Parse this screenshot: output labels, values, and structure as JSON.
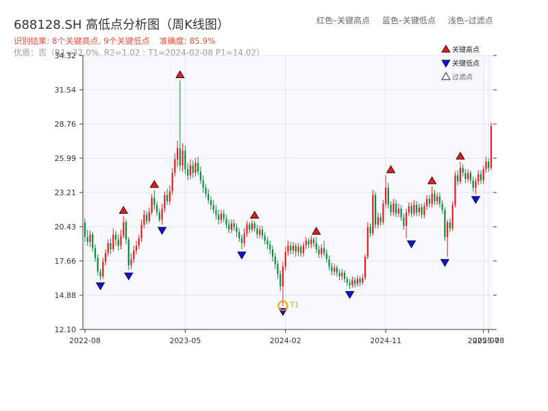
{
  "header": {
    "title": "688128.SH 高低点分析图（周K线图）",
    "legend_top": [
      "红色–关键高点",
      "蓝色–关键低点",
      "浅色–过滤点"
    ],
    "result_line": [
      "识别结果: 8个关键高点, 9个关键低点",
      "准确度: 85.9%"
    ],
    "detail_line": "优质：否（R1=32.0%, R2=1.02 ; T1=2024-02-08 P1=14.02）"
  },
  "colors": {
    "up": "#e41a1c",
    "down": "#0a8a3a",
    "high_marker": "#e41a1c",
    "low_marker": "#1010d8",
    "t1_ring": "#f39c12",
    "plot_bg": "#f6f8fb",
    "grid": "#e1e4ea",
    "axis": "#333333"
  },
  "chart_data": {
    "type": "candlestick",
    "yticks": [
      "12.10",
      "14.88",
      "17.66",
      "20.43",
      "23.21",
      "25.99",
      "28.76",
      "31.54",
      "34.32"
    ],
    "ylim": [
      12.1,
      34.32
    ],
    "xticks": [
      {
        "label": "2022-08",
        "i": 0
      },
      {
        "label": "2023-05",
        "i": 39
      },
      {
        "label": "2024-02",
        "i": 78
      },
      {
        "label": "2024-11",
        "i": 117
      },
      {
        "label": "2025-07",
        "i": 155
      },
      {
        "label": "2025-08",
        "i": 157
      }
    ],
    "legend": [
      {
        "label": "关键高点",
        "kind": "high"
      },
      {
        "label": "关键低点",
        "kind": "low"
      },
      {
        "label": "过滤点",
        "kind": "filtered"
      }
    ],
    "high_points": [
      {
        "i": 15,
        "value": 21.3
      },
      {
        "i": 27,
        "value": 23.4
      },
      {
        "i": 37,
        "value": 32.3
      },
      {
        "i": 66,
        "value": 20.9
      },
      {
        "i": 90,
        "value": 19.6
      },
      {
        "i": 119,
        "value": 24.6
      },
      {
        "i": 135,
        "value": 23.7
      },
      {
        "i": 146,
        "value": 25.7
      }
    ],
    "low_points": [
      {
        "i": 6,
        "value": 16.1
      },
      {
        "i": 17,
        "value": 16.9
      },
      {
        "i": 30,
        "value": 20.6
      },
      {
        "i": 61,
        "value": 18.6
      },
      {
        "i": 77,
        "value": 14.02
      },
      {
        "i": 103,
        "value": 15.4
      },
      {
        "i": 127,
        "value": 19.5
      },
      {
        "i": 140,
        "value": 18.0
      },
      {
        "i": 152,
        "value": 23.1
      }
    ],
    "t1": {
      "i": 77,
      "value": 14.02,
      "label": "T1"
    },
    "candles": [
      [
        20.8,
        19.6,
        21.1,
        19.2
      ],
      [
        19.6,
        19.2,
        20.2,
        18.9
      ],
      [
        19.2,
        19.8,
        20.1,
        18.8
      ],
      [
        19.8,
        18.7,
        20.0,
        18.4
      ],
      [
        18.7,
        17.9,
        19.0,
        17.6
      ],
      [
        17.9,
        16.8,
        18.2,
        16.5
      ],
      [
        16.8,
        16.4,
        17.0,
        16.1
      ],
      [
        16.4,
        17.6,
        17.9,
        16.2
      ],
      [
        17.6,
        18.3,
        18.6,
        17.3
      ],
      [
        18.3,
        19.1,
        19.4,
        18.0
      ],
      [
        19.1,
        18.6,
        19.5,
        18.2
      ],
      [
        18.6,
        19.8,
        20.3,
        18.4
      ],
      [
        19.8,
        19.4,
        20.1,
        18.9
      ],
      [
        19.4,
        18.9,
        19.8,
        18.5
      ],
      [
        18.9,
        19.7,
        20.2,
        18.6
      ],
      [
        19.7,
        20.8,
        21.3,
        19.5
      ],
      [
        20.8,
        19.4,
        21.0,
        19.0
      ],
      [
        19.4,
        17.3,
        19.6,
        16.9
      ],
      [
        17.3,
        17.8,
        18.3,
        17.0
      ],
      [
        17.8,
        18.5,
        18.9,
        17.5
      ],
      [
        18.5,
        18.9,
        19.3,
        18.2
      ],
      [
        18.9,
        19.5,
        19.8,
        18.6
      ],
      [
        19.5,
        20.6,
        21.0,
        19.2
      ],
      [
        20.6,
        21.4,
        21.8,
        20.3
      ],
      [
        21.4,
        20.9,
        21.7,
        20.6
      ],
      [
        20.9,
        21.6,
        22.0,
        20.7
      ],
      [
        21.6,
        22.8,
        23.1,
        21.4
      ],
      [
        22.8,
        22.2,
        23.4,
        21.8
      ],
      [
        22.2,
        21.6,
        22.5,
        21.3
      ],
      [
        21.6,
        21.0,
        21.9,
        20.8
      ],
      [
        21.0,
        21.9,
        22.3,
        20.6
      ],
      [
        21.9,
        23.0,
        23.3,
        21.6
      ],
      [
        23.0,
        22.5,
        23.5,
        22.2
      ],
      [
        22.5,
        23.3,
        23.8,
        22.2
      ],
      [
        23.3,
        24.8,
        25.2,
        23.0
      ],
      [
        24.8,
        25.9,
        26.4,
        24.5
      ],
      [
        25.9,
        26.8,
        27.4,
        25.3
      ],
      [
        26.8,
        25.4,
        32.3,
        25.0
      ],
      [
        25.4,
        26.6,
        27.2,
        24.9
      ],
      [
        26.6,
        25.1,
        27.0,
        24.7
      ],
      [
        25.1,
        24.6,
        25.6,
        24.2
      ],
      [
        24.6,
        25.4,
        25.9,
        24.3
      ],
      [
        25.4,
        24.8,
        25.8,
        24.4
      ],
      [
        24.8,
        25.6,
        26.0,
        24.5
      ],
      [
        25.6,
        24.9,
        26.1,
        24.6
      ],
      [
        24.9,
        24.2,
        25.3,
        23.9
      ],
      [
        24.2,
        23.6,
        24.6,
        23.2
      ],
      [
        23.6,
        23.1,
        23.9,
        22.8
      ],
      [
        23.1,
        22.6,
        23.5,
        22.3
      ],
      [
        22.6,
        22.2,
        22.9,
        21.8
      ],
      [
        22.2,
        21.8,
        22.6,
        21.5
      ],
      [
        21.8,
        21.4,
        22.2,
        21.0
      ],
      [
        21.4,
        21.0,
        21.8,
        20.6
      ],
      [
        21.0,
        21.5,
        21.8,
        20.7
      ],
      [
        21.5,
        21.1,
        21.8,
        20.8
      ],
      [
        21.1,
        20.6,
        21.4,
        20.3
      ],
      [
        20.6,
        20.2,
        21.0,
        19.9
      ],
      [
        20.2,
        20.7,
        21.0,
        19.9
      ],
      [
        20.7,
        20.4,
        21.0,
        20.1
      ],
      [
        20.4,
        20.0,
        20.7,
        19.6
      ],
      [
        20.0,
        19.5,
        20.3,
        19.2
      ],
      [
        19.5,
        19.1,
        19.8,
        18.6
      ],
      [
        19.1,
        19.9,
        20.3,
        18.8
      ],
      [
        19.9,
        20.6,
        20.9,
        19.6
      ],
      [
        20.6,
        20.2,
        20.8,
        19.9
      ],
      [
        20.2,
        20.7,
        21.0,
        20.0
      ],
      [
        20.7,
        20.3,
        20.9,
        20.0
      ],
      [
        20.3,
        19.8,
        20.6,
        19.5
      ],
      [
        19.8,
        20.2,
        20.5,
        19.5
      ],
      [
        20.2,
        19.7,
        20.5,
        19.4
      ],
      [
        19.7,
        19.3,
        20.0,
        19.0
      ],
      [
        19.3,
        19.0,
        19.6,
        18.6
      ],
      [
        19.0,
        18.6,
        19.3,
        18.2
      ],
      [
        18.6,
        18.0,
        18.9,
        17.6
      ],
      [
        18.0,
        17.4,
        18.3,
        17.0
      ],
      [
        17.4,
        16.6,
        17.7,
        16.2
      ],
      [
        16.6,
        15.6,
        16.9,
        15.2
      ],
      [
        15.6,
        17.2,
        17.6,
        14.02
      ],
      [
        17.2,
        18.4,
        18.8,
        16.9
      ],
      [
        18.4,
        18.9,
        19.3,
        18.1
      ],
      [
        18.9,
        18.5,
        19.2,
        18.2
      ],
      [
        18.5,
        18.9,
        19.2,
        18.2
      ],
      [
        18.9,
        18.4,
        19.1,
        18.0
      ],
      [
        18.4,
        18.8,
        19.1,
        18.1
      ],
      [
        18.8,
        18.3,
        19.0,
        18.0
      ],
      [
        18.3,
        18.9,
        19.2,
        18.0
      ],
      [
        18.9,
        19.3,
        19.6,
        18.6
      ],
      [
        19.3,
        19.0,
        19.5,
        18.7
      ],
      [
        19.0,
        19.4,
        19.7,
        18.7
      ],
      [
        19.4,
        19.1,
        19.6,
        18.8
      ],
      [
        19.1,
        18.6,
        19.6,
        18.3
      ],
      [
        18.6,
        18.2,
        18.9,
        17.9
      ],
      [
        18.2,
        18.7,
        19.0,
        17.9
      ],
      [
        18.7,
        18.3,
        19.3,
        18.0
      ],
      [
        18.3,
        17.8,
        18.6,
        17.5
      ],
      [
        17.8,
        17.2,
        18.1,
        16.9
      ],
      [
        17.2,
        16.8,
        17.5,
        16.5
      ],
      [
        16.8,
        17.1,
        17.4,
        16.5
      ],
      [
        17.1,
        16.7,
        17.3,
        16.4
      ],
      [
        16.7,
        16.4,
        17.0,
        16.1
      ],
      [
        16.4,
        16.7,
        17.0,
        16.1
      ],
      [
        16.7,
        16.2,
        16.9,
        15.9
      ],
      [
        16.2,
        15.9,
        16.4,
        15.6
      ],
      [
        15.9,
        15.7,
        16.2,
        15.4
      ],
      [
        15.7,
        16.1,
        16.4,
        15.5
      ],
      [
        16.1,
        15.8,
        16.3,
        15.5
      ],
      [
        15.8,
        16.2,
        16.5,
        15.6
      ],
      [
        16.2,
        15.9,
        16.4,
        15.6
      ],
      [
        15.9,
        16.3,
        16.6,
        15.7
      ],
      [
        16.3,
        18.0,
        18.2,
        16.1
      ],
      [
        18.0,
        20.4,
        20.8,
        17.8
      ],
      [
        20.4,
        19.9,
        20.7,
        19.6
      ],
      [
        19.9,
        23.0,
        23.4,
        19.7
      ],
      [
        23.0,
        20.6,
        23.2,
        20.3
      ],
      [
        20.6,
        21.2,
        21.6,
        20.3
      ],
      [
        21.2,
        20.8,
        21.5,
        20.5
      ],
      [
        20.8,
        22.3,
        22.6,
        20.6
      ],
      [
        22.3,
        23.6,
        24.6,
        22.0
      ],
      [
        23.6,
        22.2,
        24.0,
        21.9
      ],
      [
        22.2,
        21.6,
        22.5,
        21.3
      ],
      [
        21.6,
        22.3,
        22.7,
        21.3
      ],
      [
        22.3,
        21.5,
        22.6,
        21.2
      ],
      [
        21.5,
        21.9,
        22.3,
        21.2
      ],
      [
        21.9,
        21.2,
        22.2,
        20.9
      ],
      [
        21.2,
        20.5,
        21.5,
        20.2
      ],
      [
        20.5,
        21.6,
        21.9,
        19.5
      ],
      [
        21.6,
        22.1,
        22.4,
        21.3
      ],
      [
        22.1,
        21.5,
        22.4,
        21.2
      ],
      [
        21.5,
        22.2,
        22.6,
        21.3
      ],
      [
        22.2,
        21.6,
        22.5,
        21.3
      ],
      [
        21.6,
        22.0,
        22.3,
        21.3
      ],
      [
        22.0,
        21.4,
        22.3,
        21.1
      ],
      [
        21.4,
        22.1,
        22.4,
        21.1
      ],
      [
        22.1,
        22.7,
        23.0,
        21.8
      ],
      [
        22.7,
        22.3,
        23.0,
        22.0
      ],
      [
        22.3,
        23.1,
        23.7,
        22.0
      ],
      [
        23.1,
        22.5,
        23.4,
        22.2
      ],
      [
        22.5,
        22.9,
        23.2,
        22.2
      ],
      [
        22.9,
        22.3,
        23.2,
        22.0
      ],
      [
        22.3,
        21.8,
        22.6,
        21.5
      ],
      [
        21.8,
        19.6,
        22.0,
        19.3
      ],
      [
        19.6,
        20.8,
        21.0,
        18.0
      ],
      [
        20.8,
        20.3,
        21.1,
        20.0
      ],
      [
        20.3,
        22.2,
        22.5,
        20.1
      ],
      [
        22.2,
        24.6,
        24.9,
        22.0
      ],
      [
        24.6,
        24.1,
        25.0,
        23.8
      ],
      [
        24.1,
        25.2,
        25.7,
        23.9
      ],
      [
        25.2,
        24.8,
        25.5,
        24.5
      ],
      [
        24.8,
        24.3,
        25.1,
        24.0
      ],
      [
        24.3,
        24.8,
        25.1,
        24.0
      ],
      [
        24.8,
        24.2,
        25.0,
        23.9
      ],
      [
        24.2,
        23.6,
        24.5,
        23.3
      ],
      [
        23.6,
        24.1,
        24.4,
        23.1
      ],
      [
        24.1,
        24.7,
        25.0,
        23.8
      ],
      [
        24.7,
        24.2,
        25.0,
        23.9
      ],
      [
        24.2,
        25.1,
        25.4,
        23.9
      ],
      [
        25.1,
        25.7,
        26.1,
        24.8
      ],
      [
        25.7,
        25.2,
        26.0,
        24.9
      ],
      [
        25.2,
        28.6,
        28.9,
        25.0
      ]
    ]
  }
}
